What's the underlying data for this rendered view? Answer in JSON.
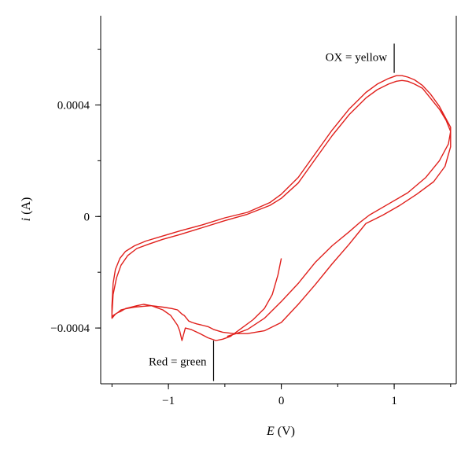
{
  "chart_data": {
    "type": "line",
    "title": "",
    "xlabel_var": "E",
    "xlabel_unit": " (V)",
    "ylabel_var": "i",
    "ylabel_unit": " (A)",
    "xlim": [
      -1.6,
      1.55
    ],
    "ylim": [
      -0.0006,
      0.00072
    ],
    "x_ticks": [
      {
        "value": -1,
        "label": "−1"
      },
      {
        "value": 0,
        "label": "0"
      },
      {
        "value": 1,
        "label": "1"
      }
    ],
    "y_ticks": [
      {
        "value": 0.0004,
        "label": "0.0004"
      },
      {
        "value": 0,
        "label": "0"
      },
      {
        "value": -0.0004,
        "label": "−0.0004"
      }
    ],
    "x_minor_step": 0.5,
    "y_minor_step": 0.0002,
    "grid": false,
    "legend": "none",
    "color": "#e0201c",
    "annotations": [
      {
        "text": "OX = yellow",
        "x": 1.0,
        "y_from": 0.000515,
        "y_to": 0.00062
      },
      {
        "text": "Red = green",
        "x": -0.6,
        "y_from": -0.000445,
        "y_to": -0.00059
      }
    ],
    "series": [
      {
        "x": [
          0.0,
          -0.03,
          -0.08,
          -0.15,
          -0.25,
          -0.35,
          -0.45,
          -0.52,
          -0.58,
          -0.65,
          -0.72,
          -0.8,
          -0.85,
          -0.88,
          -0.9,
          -0.92,
          -0.98,
          -1.05,
          -1.15,
          -1.22,
          -1.28,
          -1.33,
          -1.38,
          -1.42,
          -1.45,
          -1.47,
          -1.49,
          -1.5,
          -1.5,
          -1.49,
          -1.47,
          -1.43,
          -1.38,
          -1.3,
          -1.2,
          -1.05,
          -0.9,
          -0.7,
          -0.5,
          -0.3,
          -0.1,
          0.0,
          0.15,
          0.3,
          0.45,
          0.6,
          0.75,
          0.85,
          0.95,
          1.02,
          1.07,
          1.12,
          1.18,
          1.25,
          1.32,
          1.4,
          1.46,
          1.5,
          1.5,
          1.45,
          1.35,
          1.2,
          1.05,
          0.9,
          0.8,
          0.75,
          0.7,
          0.6,
          0.45,
          0.3,
          0.15,
          0.0,
          -0.15,
          -0.3,
          -0.42,
          -0.52,
          -0.6,
          -0.65,
          -0.7,
          -0.75,
          -0.79,
          -0.82,
          -0.84,
          -0.86,
          -0.88,
          -0.92,
          -0.97,
          -1.05,
          -1.15,
          -1.22,
          -1.3,
          -1.37,
          -1.42,
          -1.45,
          -1.47,
          -1.49,
          -1.5,
          -1.5,
          -1.49,
          -1.46,
          -1.42,
          -1.36,
          -1.28,
          -1.18,
          -1.05,
          -0.9,
          -0.7,
          -0.5,
          -0.3,
          -0.1,
          0.0,
          0.15,
          0.3,
          0.45,
          0.6,
          0.75,
          0.85,
          0.95,
          1.02,
          1.07,
          1.12,
          1.18,
          1.25,
          1.32,
          1.4,
          1.46,
          1.5,
          1.48,
          1.4,
          1.28,
          1.12,
          0.95,
          0.78,
          0.7,
          0.6,
          0.45,
          0.3,
          0.15,
          0.0,
          -0.15,
          -0.3,
          -0.4,
          -0.48
        ],
        "y": [
          -0.00015,
          -0.00021,
          -0.00028,
          -0.00033,
          -0.00037,
          -0.0004,
          -0.00043,
          -0.00044,
          -0.000445,
          -0.000435,
          -0.00042,
          -0.000405,
          -0.0004,
          -0.000445,
          -0.00041,
          -0.00039,
          -0.000355,
          -0.000335,
          -0.00032,
          -0.000315,
          -0.00032,
          -0.000325,
          -0.00033,
          -0.00034,
          -0.000345,
          -0.00035,
          -0.00036,
          -0.000365,
          -0.00032,
          -0.00024,
          -0.00019,
          -0.00015,
          -0.000125,
          -0.000105,
          -8.8e-05,
          -7e-05,
          -5.2e-05,
          -3e-05,
          -5e-06,
          1.5e-05,
          5e-05,
          8e-05,
          0.00014,
          0.000225,
          0.00031,
          0.000385,
          0.000445,
          0.000475,
          0.000495,
          0.000505,
          0.000505,
          0.0005,
          0.00049,
          0.00047,
          0.00044,
          0.000395,
          0.00035,
          0.00032,
          0.00025,
          0.00018,
          0.000125,
          8e-05,
          4e-05,
          5e-06,
          -1.5e-05,
          -2.5e-05,
          -5e-05,
          -0.0001,
          -0.00017,
          -0.000245,
          -0.000315,
          -0.00038,
          -0.00041,
          -0.00042,
          -0.00042,
          -0.000415,
          -0.000405,
          -0.000395,
          -0.00039,
          -0.000385,
          -0.00038,
          -0.000375,
          -0.000365,
          -0.000355,
          -0.00035,
          -0.000335,
          -0.00033,
          -0.000325,
          -0.00032,
          -0.000322,
          -0.000325,
          -0.00033,
          -0.000335,
          -0.000345,
          -0.00035,
          -0.000355,
          -0.000365,
          -0.00035,
          -0.00028,
          -0.00022,
          -0.000175,
          -0.00014,
          -0.000115,
          -0.0001,
          -8.2e-05,
          -6.5e-05,
          -4e-05,
          -1.5e-05,
          8e-06,
          4e-05,
          6.5e-05,
          0.00012,
          0.000205,
          0.00029,
          0.000365,
          0.000425,
          0.000455,
          0.000475,
          0.000485,
          0.000488,
          0.000485,
          0.000475,
          0.00046,
          0.000425,
          0.000385,
          0.000345,
          0.000305,
          0.00026,
          0.0002,
          0.00014,
          8.5e-05,
          4.5e-05,
          5e-06,
          -2e-05,
          -5.5e-05,
          -0.000105,
          -0.000165,
          -0.00024,
          -0.000305,
          -0.000365,
          -0.000405,
          -0.00042,
          -0.00043
        ]
      }
    ]
  }
}
